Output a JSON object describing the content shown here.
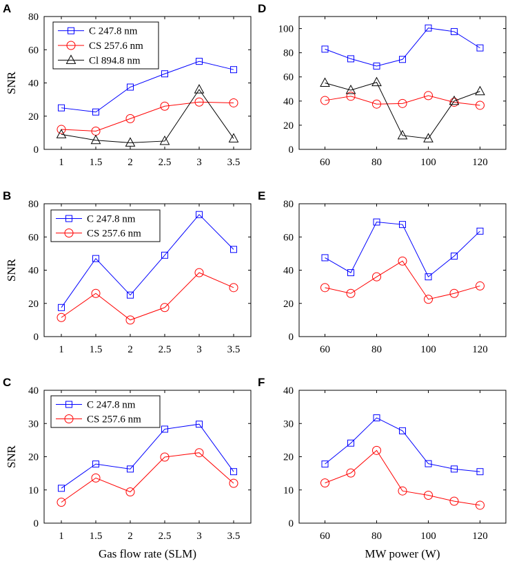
{
  "chart_data": [
    {
      "panel": "A",
      "type": "line",
      "x": [
        1,
        1.5,
        2,
        2.5,
        3,
        3.5
      ],
      "xticks": [
        "1",
        "1.5",
        "2",
        "2.5",
        "3",
        "3.5"
      ],
      "xlim": [
        0.75,
        3.75
      ],
      "ylim": [
        0,
        80
      ],
      "yticks": [
        "0",
        "20",
        "40",
        "60",
        "80"
      ],
      "ylabel": "SNR",
      "xlabel": "",
      "legend": true,
      "series": [
        {
          "name": "C 247.8 nm",
          "color": "#0000ff",
          "marker": "square",
          "values": [
            25,
            22.5,
            37.5,
            45.5,
            53,
            48
          ]
        },
        {
          "name": "CS 257.6 nm",
          "color": "#ff0000",
          "marker": "circle",
          "values": [
            12,
            11,
            18.5,
            26,
            28.5,
            28
          ]
        },
        {
          "name": "Cl 894.8 nm",
          "color": "#000000",
          "marker": "triangle",
          "values": [
            9,
            5.5,
            4,
            5,
            36,
            6.5
          ]
        }
      ]
    },
    {
      "panel": "B",
      "type": "line",
      "x": [
        1,
        1.5,
        2,
        2.5,
        3,
        3.5
      ],
      "xticks": [
        "1",
        "1.5",
        "2",
        "2.5",
        "3",
        "3.5"
      ],
      "xlim": [
        0.75,
        3.75
      ],
      "ylim": [
        0,
        80
      ],
      "yticks": [
        "0",
        "20",
        "40",
        "60",
        "80"
      ],
      "ylabel": "SNR",
      "xlabel": "",
      "legend": true,
      "series": [
        {
          "name": "C 247.8 nm",
          "color": "#0000ff",
          "marker": "square",
          "values": [
            17.5,
            47,
            25,
            49,
            73.5,
            52.5
          ]
        },
        {
          "name": "CS 257.6 nm",
          "color": "#ff0000",
          "marker": "circle",
          "values": [
            11.5,
            26,
            10,
            17.5,
            38.5,
            29.5
          ]
        }
      ]
    },
    {
      "panel": "C",
      "type": "line",
      "x": [
        1,
        1.5,
        2,
        2.5,
        3,
        3.5
      ],
      "xticks": [
        "1",
        "1.5",
        "2",
        "2.5",
        "3",
        "3.5"
      ],
      "xlim": [
        0.75,
        3.75
      ],
      "ylim": [
        0,
        40
      ],
      "yticks": [
        "0",
        "10",
        "20",
        "30",
        "40"
      ],
      "ylabel": "SNR",
      "xlabel": "Gas flow rate (SLM)",
      "legend": true,
      "series": [
        {
          "name": "C 247.8 nm",
          "color": "#0000ff",
          "marker": "square",
          "values": [
            10.5,
            17.8,
            16.3,
            28.3,
            29.8,
            15.5
          ]
        },
        {
          "name": "CS 257.6 nm",
          "color": "#ff0000",
          "marker": "circle",
          "values": [
            6.3,
            13.6,
            9.4,
            19.9,
            21.2,
            12
          ]
        }
      ]
    },
    {
      "panel": "D",
      "type": "line",
      "x": [
        60,
        70,
        80,
        90,
        100,
        110,
        120
      ],
      "xticks": [
        "60",
        "80",
        "100",
        "120"
      ],
      "xtick_values": [
        60,
        80,
        100,
        120
      ],
      "xlim": [
        50,
        130
      ],
      "ylim": [
        0,
        110
      ],
      "yticks": [
        "0",
        "20",
        "40",
        "60",
        "80",
        "100"
      ],
      "ylabel": "",
      "xlabel": "",
      "legend": false,
      "series": [
        {
          "name": "C 247.8 nm",
          "color": "#0000ff",
          "marker": "square",
          "values": [
            83,
            75,
            69,
            74.5,
            100.5,
            97.5,
            84
          ]
        },
        {
          "name": "CS 257.6 nm",
          "color": "#ff0000",
          "marker": "circle",
          "values": [
            40.5,
            44,
            37.5,
            38,
            44.5,
            39,
            36.5
          ]
        },
        {
          "name": "Cl 894.8 nm",
          "color": "#000000",
          "marker": "triangle",
          "values": [
            55,
            49,
            55.5,
            11.5,
            9,
            40,
            48
          ]
        }
      ]
    },
    {
      "panel": "E",
      "type": "line",
      "x": [
        60,
        70,
        80,
        90,
        100,
        110,
        120
      ],
      "xticks": [
        "60",
        "80",
        "100",
        "120"
      ],
      "xtick_values": [
        60,
        80,
        100,
        120
      ],
      "xlim": [
        50,
        130
      ],
      "ylim": [
        0,
        80
      ],
      "yticks": [
        "0",
        "20",
        "40",
        "60",
        "80"
      ],
      "ylabel": "",
      "xlabel": "",
      "legend": false,
      "series": [
        {
          "name": "C 247.8 nm",
          "color": "#0000ff",
          "marker": "square",
          "values": [
            47.5,
            38.5,
            69,
            67.5,
            36,
            48.5,
            63.5
          ]
        },
        {
          "name": "CS 257.6 nm",
          "color": "#ff0000",
          "marker": "circle",
          "values": [
            29.5,
            26,
            36,
            45.5,
            22.5,
            26,
            30.5
          ]
        }
      ]
    },
    {
      "panel": "F",
      "type": "line",
      "x": [
        60,
        70,
        80,
        90,
        100,
        110,
        120
      ],
      "xticks": [
        "60",
        "80",
        "100",
        "120"
      ],
      "xtick_values": [
        60,
        80,
        100,
        120
      ],
      "xlim": [
        50,
        130
      ],
      "ylim": [
        0,
        40
      ],
      "yticks": [
        "0",
        "10",
        "20",
        "30",
        "40"
      ],
      "ylabel": "",
      "xlabel": "MW power (W)",
      "legend": false,
      "series": [
        {
          "name": "C 247.8 nm",
          "color": "#0000ff",
          "marker": "square",
          "values": [
            17.8,
            24.1,
            31.7,
            27.8,
            17.9,
            16.3,
            15.5
          ]
        },
        {
          "name": "CS 257.6 nm",
          "color": "#ff0000",
          "marker": "circle",
          "values": [
            12.1,
            15.1,
            21.9,
            9.7,
            8.4,
            6.6,
            5.4
          ]
        }
      ]
    }
  ]
}
